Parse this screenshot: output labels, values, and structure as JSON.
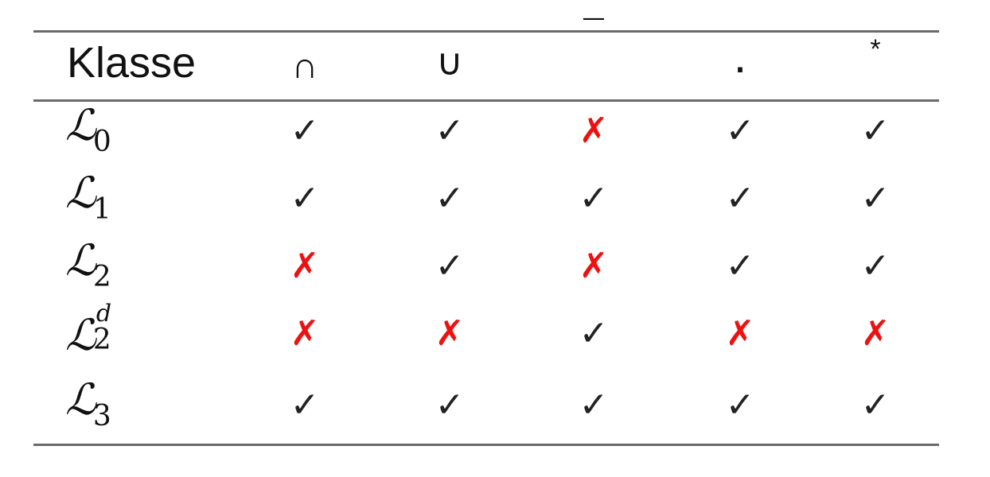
{
  "table": {
    "header": [
      "Klasse",
      "∩",
      "∪",
      "¯",
      "·",
      "*"
    ],
    "rows": [
      {
        "class": "ℒ",
        "sub": "0",
        "sup": "",
        "cells": [
          "✓",
          "✓",
          "✗",
          "✓",
          "✓"
        ]
      },
      {
        "class": "ℒ",
        "sub": "1",
        "sup": "",
        "cells": [
          "✓",
          "✓",
          "✓",
          "✓",
          "✓"
        ]
      },
      {
        "class": "ℒ",
        "sub": "2",
        "sup": "",
        "cells": [
          "✗",
          "✓",
          "✗",
          "✓",
          "✓"
        ]
      },
      {
        "class": "ℒ",
        "sub": "2",
        "sup": "d",
        "cells": [
          "✗",
          "✗",
          "✓",
          "✗",
          "✗"
        ]
      },
      {
        "class": "ℒ",
        "sub": "3",
        "sup": "",
        "cells": [
          "✓",
          "✓",
          "✓",
          "✓",
          "✓"
        ]
      }
    ]
  },
  "colors": {
    "check": "#222222",
    "cross": "#ee1111",
    "rule": "#6a6a6a"
  }
}
